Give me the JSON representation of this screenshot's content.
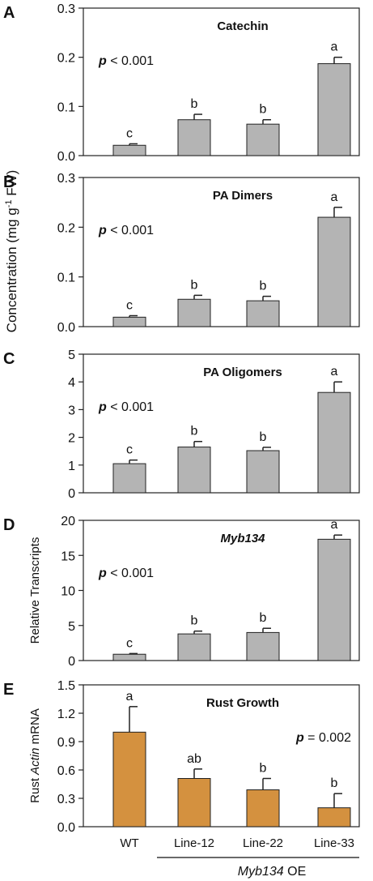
{
  "figure": {
    "shared_ylabel_main": "Concentration (mg g",
    "shared_ylabel_sup": "-1",
    "shared_ylabel_end": " FW)",
    "group_label_italic": "Myb134",
    "group_label_rest": " OE"
  },
  "chart_data": [
    {
      "type": "bar",
      "panel_letter": "A",
      "title": "Catechin",
      "title_italic": false,
      "pvalue_prefix": "p",
      "pvalue_text": " < 0.001",
      "pvalue_position": "left",
      "ylabel": "",
      "categories": [
        "WT",
        "Line-12",
        "Line-22",
        "Line-33"
      ],
      "values": [
        0.021,
        0.073,
        0.064,
        0.187
      ],
      "errors": [
        0.003,
        0.011,
        0.009,
        0.013
      ],
      "letters": [
        "c",
        "b",
        "b",
        "a"
      ],
      "ylim": [
        0,
        0.3
      ],
      "yticks": [
        0,
        0.1,
        0.2,
        0.3
      ],
      "ytick_labels": [
        "0.0",
        "0.1",
        "0.2",
        "0.3"
      ],
      "bar_color": "#b4b4b4",
      "show_xlabels": false,
      "grid": false
    },
    {
      "type": "bar",
      "panel_letter": "B",
      "title": "PA Dimers",
      "title_italic": false,
      "pvalue_prefix": "p",
      "pvalue_text": " < 0.001",
      "pvalue_position": "left",
      "ylabel": "",
      "categories": [
        "WT",
        "Line-12",
        "Line-22",
        "Line-33"
      ],
      "values": [
        0.019,
        0.055,
        0.052,
        0.22
      ],
      "errors": [
        0.003,
        0.008,
        0.009,
        0.02
      ],
      "letters": [
        "c",
        "b",
        "b",
        "a"
      ],
      "ylim": [
        0,
        0.3
      ],
      "yticks": [
        0,
        0.1,
        0.2,
        0.3
      ],
      "ytick_labels": [
        "0.0",
        "0.1",
        "0.2",
        "0.3"
      ],
      "bar_color": "#b4b4b4",
      "show_xlabels": false,
      "grid": false
    },
    {
      "type": "bar",
      "panel_letter": "C",
      "title": "PA Oligomers",
      "title_italic": false,
      "pvalue_prefix": "p",
      "pvalue_text": " < 0.001",
      "pvalue_position": "left",
      "ylabel": "",
      "categories": [
        "WT",
        "Line-12",
        "Line-22",
        "Line-33"
      ],
      "values": [
        1.05,
        1.65,
        1.52,
        3.62
      ],
      "errors": [
        0.13,
        0.2,
        0.12,
        0.38
      ],
      "letters": [
        "c",
        "b",
        "b",
        "a"
      ],
      "ylim": [
        0,
        5
      ],
      "yticks": [
        0,
        1,
        2,
        3,
        4,
        5
      ],
      "ytick_labels": [
        "0",
        "1",
        "2",
        "3",
        "4",
        "5"
      ],
      "bar_color": "#b4b4b4",
      "show_xlabels": false,
      "grid": false
    },
    {
      "type": "bar",
      "panel_letter": "D",
      "title": "Myb134",
      "title_italic": true,
      "pvalue_prefix": "p",
      "pvalue_text": " < 0.001",
      "pvalue_position": "left",
      "ylabel": "Relative Transcripts",
      "ylabel_italic": "",
      "ylabel_rest": "",
      "categories": [
        "WT",
        "Line-12",
        "Line-22",
        "Line-33"
      ],
      "values": [
        0.9,
        3.8,
        4.0,
        17.3
      ],
      "errors": [
        0.1,
        0.4,
        0.6,
        0.6
      ],
      "letters": [
        "c",
        "b",
        "b",
        "a"
      ],
      "ylim": [
        0,
        20
      ],
      "yticks": [
        0,
        5,
        10,
        15,
        20
      ],
      "ytick_labels": [
        "0",
        "5",
        "10",
        "15",
        "20"
      ],
      "bar_color": "#b4b4b4",
      "show_xlabels": false,
      "grid": false
    },
    {
      "type": "bar",
      "panel_letter": "E",
      "title": "Rust Growth",
      "title_italic": false,
      "pvalue_prefix": "p",
      "pvalue_text": " = 0.002",
      "pvalue_position": "right",
      "ylabel": "",
      "ylabel_pre": "Rust ",
      "ylabel_italic": "Actin",
      "ylabel_rest": " mRNA",
      "categories": [
        "WT",
        "Line-12",
        "Line-22",
        "Line-33"
      ],
      "values": [
        1.0,
        0.51,
        0.39,
        0.2
      ],
      "errors": [
        0.27,
        0.1,
        0.12,
        0.15
      ],
      "letters": [
        "a",
        "ab",
        "b",
        "b"
      ],
      "ylim": [
        0,
        1.5
      ],
      "yticks": [
        0,
        0.3,
        0.6,
        0.9,
        1.2,
        1.5
      ],
      "ytick_labels": [
        "0.0",
        "0.3",
        "0.6",
        "0.9",
        "1.2",
        "1.5"
      ],
      "bar_color": "#d4913f",
      "show_xlabels": true,
      "grid": false
    }
  ]
}
